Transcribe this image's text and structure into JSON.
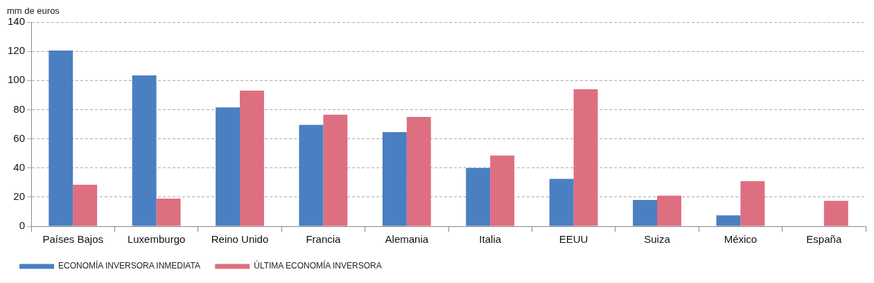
{
  "chart_data": {
    "type": "bar",
    "ylabel": "mm de euros",
    "categories": [
      "Países Bajos",
      "Luxemburgo",
      "Reino Unido",
      "Francia",
      "Alemania",
      "Italia",
      "EEUU",
      "Suiza",
      "México",
      "España"
    ],
    "series": [
      {
        "name": "ECONOMÍA INVERSORA INMEDIATA",
        "color": "#4a7fc1",
        "values": [
          120.5,
          103.5,
          81.5,
          69.5,
          64.5,
          40,
          32.5,
          18,
          7.5,
          null
        ]
      },
      {
        "name": "ÚLTIMA ECONOMÍA INVERSORA",
        "color": "#de6f80",
        "values": [
          28.5,
          19,
          93,
          76.5,
          75,
          48.5,
          94,
          21,
          31,
          17.5
        ]
      }
    ],
    "ylim": [
      0,
      140
    ],
    "yticks": [
      0,
      20,
      40,
      60,
      80,
      100,
      120,
      140
    ],
    "grid": "y",
    "legend": "bottom left"
  }
}
